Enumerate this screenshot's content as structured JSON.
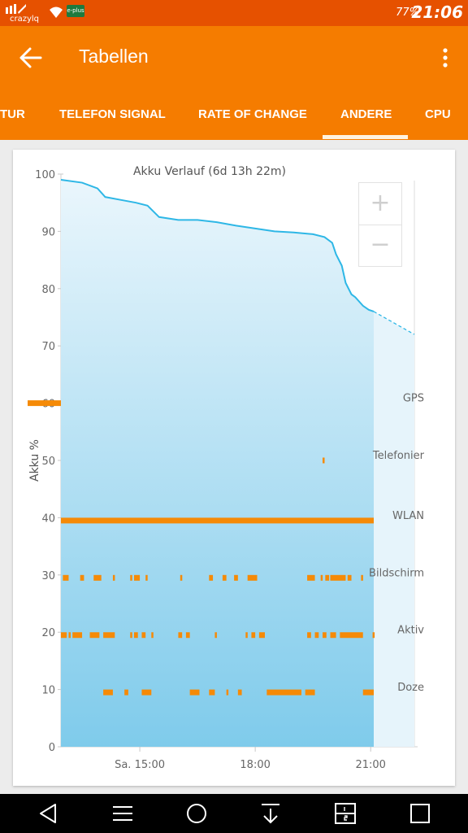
{
  "status_bar": {
    "carrier": "crazylq",
    "network_badge": "e-plus",
    "battery_percent": "77%",
    "time": "21:06",
    "icons": [
      "signal-bars-icon",
      "wifi-icon"
    ]
  },
  "app_bar": {
    "title": "Tabellen",
    "back_icon": "arrow-left-icon",
    "menu_icon": "more-vert-icon"
  },
  "tabs": [
    {
      "label": "TUR",
      "active": false
    },
    {
      "label": "TELEFON SIGNAL",
      "active": false
    },
    {
      "label": "RATE OF CHANGE",
      "active": false
    },
    {
      "label": "ANDERE",
      "active": true
    },
    {
      "label": "CPU",
      "active": false
    }
  ],
  "zoom": {
    "in_label": "+",
    "out_label": "−"
  },
  "chart_data": {
    "type": "line",
    "title": "Akku Verlauf (6d 13h 22m)",
    "ylabel": "Akku %",
    "ylim": [
      0,
      100
    ],
    "y_ticks": [
      "100",
      "90",
      "80",
      "70",
      "60",
      "50",
      "40",
      "30",
      "20",
      "10",
      "0"
    ],
    "x_ticks": [
      {
        "label": "Sa. 15:00",
        "hour": 15
      },
      {
        "label": "18:00",
        "hour": 18
      },
      {
        "label": "21:00",
        "hour": 21
      }
    ],
    "x_range_hours": [
      12.95,
      22.2
    ],
    "now_hour": 21.08,
    "series": [
      {
        "points": [
          [
            12.95,
            99
          ],
          [
            13.5,
            98.5
          ],
          [
            13.9,
            97.5
          ],
          [
            14.1,
            96
          ],
          [
            14.5,
            95.5
          ],
          [
            14.9,
            95
          ],
          [
            15.2,
            94.5
          ],
          [
            15.5,
            92.5
          ],
          [
            16,
            92
          ],
          [
            16.5,
            92
          ],
          [
            17,
            91.6
          ],
          [
            17.5,
            91
          ],
          [
            18,
            90.5
          ],
          [
            18.5,
            90
          ],
          [
            19,
            89.8
          ],
          [
            19.5,
            89.5
          ],
          [
            19.8,
            89
          ],
          [
            20.0,
            88
          ],
          [
            20.1,
            86
          ],
          [
            20.25,
            84
          ],
          [
            20.35,
            81
          ],
          [
            20.5,
            79
          ],
          [
            20.6,
            78.5
          ],
          [
            20.8,
            77
          ],
          [
            20.95,
            76.3
          ],
          [
            21.08,
            76
          ]
        ]
      }
    ],
    "projection": [
      [
        21.08,
        76
      ],
      [
        22.2,
        72
      ]
    ],
    "indicator_rows": [
      {
        "label": "GPS",
        "y": 60,
        "segments": [
          [
            12.1,
            12.95
          ]
        ]
      },
      {
        "label": "Telefonier",
        "y": 50,
        "segments": [
          [
            19.75,
            19.78
          ]
        ]
      },
      {
        "label": "WLAN",
        "y": 39.5,
        "segments": [
          [
            12.95,
            21.08
          ]
        ]
      },
      {
        "label": "Bildschirm",
        "y": 29.5,
        "segments": [
          [
            13.0,
            13.15
          ],
          [
            13.45,
            13.55
          ],
          [
            13.8,
            14.0
          ],
          [
            14.3,
            14.35
          ],
          [
            14.75,
            14.8
          ],
          [
            14.85,
            15.0
          ],
          [
            15.15,
            15.2
          ],
          [
            16.05,
            16.1
          ],
          [
            16.8,
            16.9
          ],
          [
            17.15,
            17.25
          ],
          [
            17.45,
            17.55
          ],
          [
            17.8,
            18.05
          ],
          [
            19.35,
            19.55
          ],
          [
            19.7,
            19.75
          ],
          [
            19.82,
            19.92
          ],
          [
            19.95,
            20.35
          ],
          [
            20.4,
            20.5
          ],
          [
            20.75,
            20.78
          ]
        ]
      },
      {
        "label": "Aktiv",
        "y": 19.5,
        "segments": [
          [
            12.95,
            13.1
          ],
          [
            13.15,
            13.2
          ],
          [
            13.25,
            13.5
          ],
          [
            13.7,
            13.95
          ],
          [
            14.05,
            14.35
          ],
          [
            14.75,
            14.8
          ],
          [
            14.85,
            14.95
          ],
          [
            15.05,
            15.15
          ],
          [
            15.3,
            15.35
          ],
          [
            16.0,
            16.1
          ],
          [
            16.2,
            16.3
          ],
          [
            16.95,
            17.0
          ],
          [
            17.75,
            17.8
          ],
          [
            17.9,
            18.0
          ],
          [
            18.1,
            18.25
          ],
          [
            19.35,
            19.45
          ],
          [
            19.55,
            19.65
          ],
          [
            19.75,
            19.85
          ],
          [
            19.95,
            20.1
          ],
          [
            20.2,
            20.8
          ],
          [
            21.05,
            21.08
          ]
        ]
      },
      {
        "label": "Doze",
        "y": 9.5,
        "segments": [
          [
            14.05,
            14.3
          ],
          [
            14.6,
            14.7
          ],
          [
            15.05,
            15.3
          ],
          [
            16.3,
            16.55
          ],
          [
            16.8,
            16.95
          ],
          [
            17.25,
            17.3
          ],
          [
            17.55,
            17.65
          ],
          [
            18.3,
            19.2
          ],
          [
            19.3,
            19.55
          ],
          [
            20.8,
            21.08
          ]
        ]
      }
    ],
    "colors": {
      "line": "#2eb7e6",
      "fill_top": "#eaf6fc",
      "fill_bottom": "#7fcbeb",
      "indicator": "#f58a07",
      "projection_fill": "#e6f4fb"
    }
  },
  "nav_bar": {
    "icons": [
      "back-triangle-icon",
      "menu-lines-icon",
      "home-circle-icon",
      "download-arrow-icon",
      "split-screen-icon",
      "recents-square-icon"
    ]
  }
}
